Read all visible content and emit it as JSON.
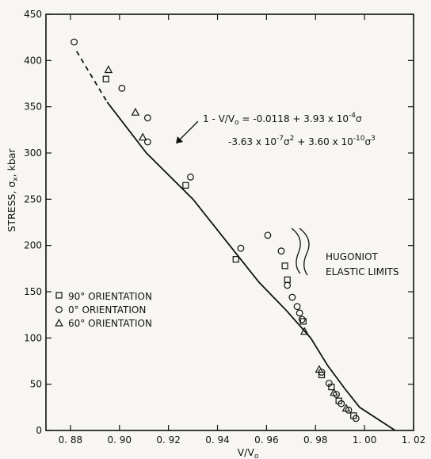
{
  "chart_data": {
    "type": "scatter",
    "xlabel": "V/V",
    "xlabel_sub": "o",
    "ylabel": "STRESS, σ",
    "ylabel_sub": "x",
    "ylabel_suffix": ", kbar",
    "xlim": [
      0.87,
      1.02
    ],
    "ylim": [
      0,
      450
    ],
    "xticks": [
      0.88,
      0.9,
      0.92,
      0.94,
      0.96,
      0.98,
      1.0,
      1.02
    ],
    "xtick_labels": [
      "0. 88",
      "0. 90",
      "0. 92",
      "0. 94",
      "0. 96",
      "0. 98",
      "1. 00",
      "1. 02"
    ],
    "yticks": [
      0,
      50,
      100,
      150,
      200,
      250,
      300,
      350,
      400,
      450
    ],
    "grid": false,
    "legend_position": "left-center",
    "equation_line1": "1 - V/V",
    "equation_line1_sub": "o",
    "equation_line1_rest": " = -0.0118 + 3.93 x 10",
    "equation_line1_exp": "-4",
    "equation_line1_end": "σ",
    "equation_line2": "-3.63 x 10",
    "equation_line2_exp": "-7",
    "equation_line2_mid": "σ",
    "equation_line2_exp2": "2",
    "equation_line2_rest": " + 3.60 x 10",
    "equation_line2_exp3": "-10",
    "equation_line2_end": "σ",
    "equation_line2_exp4": "3",
    "annotation_label_1": "HUGONIOT",
    "annotation_label_2": "ELASTIC LIMITS",
    "fit_curve": {
      "x": [
        0.8825,
        0.895,
        0.911,
        0.93,
        0.945,
        0.957,
        0.968,
        0.978,
        0.985,
        0.992,
        0.998,
        1.0125
      ],
      "y": [
        410,
        355,
        300,
        250,
        200,
        160,
        130,
        100,
        70,
        45,
        25,
        0
      ],
      "extrapolated_until_x": 0.896
    },
    "series": [
      {
        "name": "90° ORIENTATION",
        "marker": "square",
        "points": [
          [
            0.8945,
            380
          ],
          [
            0.927,
            265
          ],
          [
            0.9475,
            185
          ],
          [
            0.9675,
            178
          ],
          [
            0.9685,
            163
          ],
          [
            0.975,
            118
          ],
          [
            0.9825,
            60
          ],
          [
            0.9865,
            47
          ],
          [
            0.9895,
            32
          ],
          [
            0.9955,
            16
          ]
        ]
      },
      {
        "name": "0° ORIENTATION",
        "marker": "circle",
        "points": [
          [
            0.8815,
            420
          ],
          [
            0.901,
            370
          ],
          [
            0.9115,
            338
          ],
          [
            0.9115,
            312
          ],
          [
            0.929,
            274
          ],
          [
            0.9495,
            197
          ],
          [
            0.9605,
            211
          ],
          [
            0.966,
            194
          ],
          [
            0.9685,
            157
          ],
          [
            0.9705,
            144
          ],
          [
            0.9725,
            134
          ],
          [
            0.9735,
            127
          ],
          [
            0.9745,
            120
          ],
          [
            0.9825,
            63
          ],
          [
            0.9855,
            51
          ],
          [
            0.9885,
            39
          ],
          [
            0.9905,
            29
          ],
          [
            0.9935,
            22
          ],
          [
            0.9965,
            13
          ]
        ]
      },
      {
        "name": "60° ORIENTATION",
        "marker": "triangle",
        "points": [
          [
            0.8955,
            390
          ],
          [
            0.9065,
            344
          ],
          [
            0.9095,
            317
          ],
          [
            0.9755,
            107
          ],
          [
            0.9815,
            66
          ],
          [
            0.9875,
            41
          ],
          [
            0.9925,
            24
          ]
        ]
      }
    ]
  }
}
